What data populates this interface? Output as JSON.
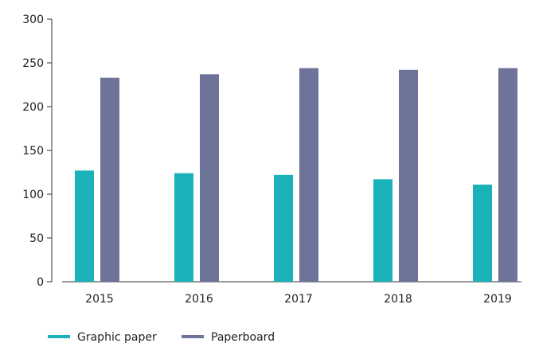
{
  "chart_data": {
    "type": "bar",
    "categories": [
      "2015",
      "2016",
      "2017",
      "2018",
      "2019"
    ],
    "series": [
      {
        "name": "Graphic paper",
        "values": [
          127,
          124,
          122,
          117,
          111
        ],
        "color": "#1ab2b8"
      },
      {
        "name": "Paperboard",
        "values": [
          233,
          237,
          244,
          242,
          244
        ],
        "color": "#6e7399"
      }
    ],
    "ylim": [
      0,
      300
    ],
    "yticks": [
      "0",
      "50",
      "100",
      "150",
      "200",
      "250",
      "300"
    ],
    "title": "",
    "xlabel": "",
    "ylabel": "",
    "grid": false,
    "legend_position": "bottom-left"
  }
}
